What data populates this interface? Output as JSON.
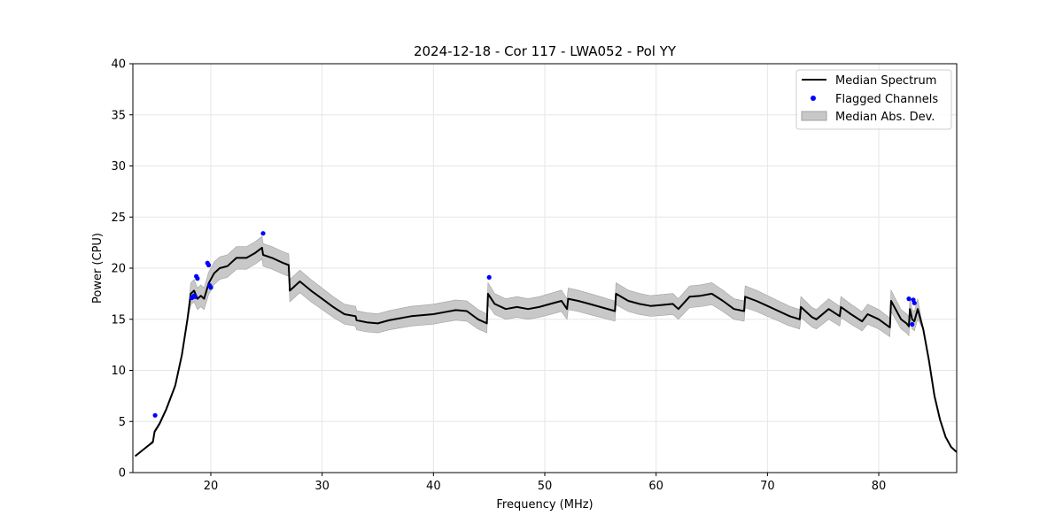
{
  "chart_data": {
    "type": "line",
    "title": "2024-12-18 - Cor 117 - LWA052 - Pol YY",
    "xlabel": "Frequency (MHz)",
    "ylabel": "Power (CPU)",
    "xlim": [
      13,
      87
    ],
    "ylim": [
      0,
      40
    ],
    "xticks": [
      20,
      30,
      40,
      50,
      60,
      70,
      80
    ],
    "yticks": [
      0,
      5,
      10,
      15,
      20,
      25,
      30,
      35,
      40
    ],
    "grid": true,
    "legend_position": "top-right",
    "colors": {
      "median": "#000000",
      "flagged": "#0000ff",
      "mad_fill": "#c8c8c8",
      "mad_edge": "#a0a0a0"
    },
    "legend": [
      {
        "label": "Median Spectrum",
        "kind": "line"
      },
      {
        "label": "Flagged Channels",
        "kind": "dots"
      },
      {
        "label": "Median Abs. Dev.",
        "kind": "band"
      }
    ],
    "series": [
      {
        "name": "Median Spectrum",
        "x": [
          13.2,
          14.0,
          14.8,
          14.95,
          15.4,
          16.0,
          16.8,
          17.4,
          17.9,
          18.2,
          18.5,
          18.8,
          19.1,
          19.4,
          19.8,
          20.3,
          20.8,
          21.5,
          22.3,
          23.2,
          24.0,
          24.6,
          24.7,
          25.5,
          26.5,
          27.0,
          27.1,
          28.0,
          29.0,
          30.0,
          31.0,
          32.0,
          33.0,
          33.1,
          34.0,
          35.0,
          36.0,
          37.0,
          38.0,
          39.0,
          40.0,
          41.0,
          42.0,
          43.0,
          44.0,
          44.8,
          44.9,
          45.5,
          46.5,
          47.5,
          48.5,
          49.5,
          50.5,
          51.5,
          52.0,
          52.1,
          53.0,
          54.0,
          55.0,
          56.3,
          56.4,
          57.5,
          58.5,
          59.5,
          60.5,
          61.5,
          62.0,
          63.0,
          64.0,
          65.0,
          66.0,
          67.0,
          67.9,
          68.0,
          69.0,
          70.0,
          71.0,
          72.0,
          72.9,
          73.0,
          74.0,
          74.4,
          75.5,
          76.5,
          76.6,
          77.5,
          78.5,
          79.0,
          80.0,
          81.0,
          81.1,
          82.0,
          82.5,
          82.7,
          82.8,
          83.0,
          83.2,
          83.5,
          84.0,
          84.5,
          85.0,
          85.5,
          86.0,
          86.5,
          87.0
        ],
        "y": [
          1.6,
          2.3,
          3.0,
          4.0,
          4.8,
          6.2,
          8.5,
          11.5,
          15.0,
          17.5,
          17.8,
          17.0,
          17.3,
          17.0,
          18.5,
          19.5,
          20.0,
          20.2,
          21.0,
          21.0,
          21.5,
          22.0,
          21.3,
          21.0,
          20.5,
          20.3,
          17.8,
          18.7,
          17.8,
          17.0,
          16.2,
          15.5,
          15.3,
          14.9,
          14.7,
          14.6,
          14.9,
          15.1,
          15.3,
          15.4,
          15.5,
          15.7,
          15.9,
          15.8,
          15.0,
          14.6,
          17.5,
          16.5,
          16.0,
          16.2,
          16.0,
          16.2,
          16.5,
          16.8,
          16.0,
          17.0,
          16.8,
          16.5,
          16.2,
          15.8,
          17.5,
          16.8,
          16.5,
          16.3,
          16.4,
          16.5,
          16.0,
          17.2,
          17.3,
          17.5,
          16.8,
          16.0,
          15.8,
          17.2,
          16.8,
          16.3,
          15.8,
          15.3,
          15.0,
          16.2,
          15.2,
          15.0,
          16.0,
          15.3,
          16.2,
          15.5,
          14.8,
          15.5,
          15.0,
          14.2,
          16.8,
          15.0,
          14.6,
          14.3,
          16.0,
          15.0,
          14.8,
          16.0,
          14.0,
          11.0,
          7.5,
          5.2,
          3.5,
          2.5,
          2.0
        ]
      },
      {
        "name": "Flagged Channels",
        "x": [
          15.0,
          18.3,
          18.5,
          18.6,
          18.7,
          18.8,
          19.7,
          19.8,
          19.9,
          20.0,
          24.7,
          45.0,
          82.7,
          83.0,
          83.1,
          83.2
        ],
        "y": [
          5.6,
          17.1,
          17.3,
          17.2,
          19.2,
          19.0,
          20.5,
          20.3,
          18.3,
          18.1,
          23.4,
          19.1,
          17.0,
          14.5,
          16.9,
          16.6
        ]
      }
    ]
  }
}
